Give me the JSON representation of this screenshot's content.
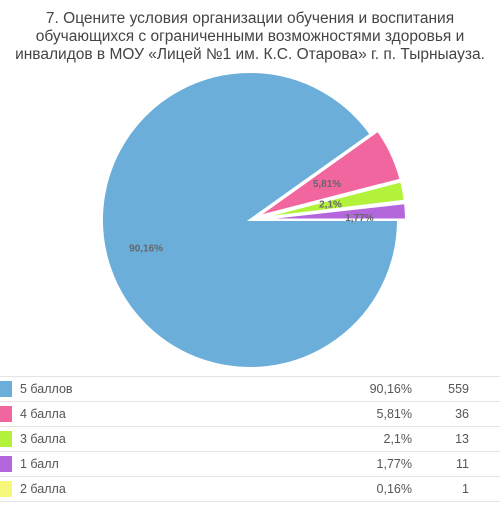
{
  "chart_data": {
    "type": "pie",
    "title_lines": [
      "7. Оцените условия организации обучения и воспитания",
      "обучающихся с ограниченными возможностями здоровья и",
      "инвалидов в МОУ «Лицей №1 им. К.С. Отарова» г. п. Тырныауза."
    ],
    "slices": [
      {
        "label": "5 баллов",
        "percent": 90.16,
        "percent_text": "90,16%",
        "count": 559,
        "count_text": "559",
        "color": "#6aaed9"
      },
      {
        "label": "4 балла",
        "percent": 5.81,
        "percent_text": "5,81%",
        "count": 36,
        "count_text": "36",
        "color": "#f266a0"
      },
      {
        "label": "3 балла",
        "percent": 2.1,
        "percent_text": "2,1%",
        "count": 13,
        "count_text": "13",
        "color": "#b2f23a"
      },
      {
        "label": "1 балл",
        "percent": 1.77,
        "percent_text": "1,77%",
        "count": 11,
        "count_text": "11",
        "color": "#b466dc"
      },
      {
        "label": "2 балла",
        "percent": 0.16,
        "percent_text": "0,16%",
        "count": 1,
        "count_text": "1",
        "color": "#f7f77a"
      }
    ],
    "pie_label_order": [
      0,
      1,
      2,
      3
    ]
  }
}
